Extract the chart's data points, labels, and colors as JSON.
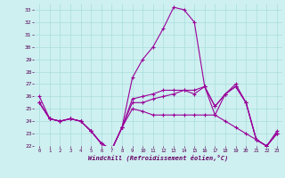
{
  "x": [
    0,
    1,
    2,
    3,
    4,
    5,
    6,
    7,
    8,
    9,
    10,
    11,
    12,
    13,
    14,
    15,
    16,
    17,
    18,
    19,
    20,
    21,
    22,
    23
  ],
  "line1": [
    26,
    24.2,
    24,
    24.2,
    24,
    23.2,
    22.2,
    21.7,
    23.5,
    25.5,
    25.5,
    25.8,
    26.0,
    26.2,
    26.5,
    26.2,
    26.8,
    25.2,
    26.2,
    26.8,
    25.5,
    22.5,
    22.0,
    23.0
  ],
  "line2": [
    25.5,
    24.2,
    24,
    24.2,
    24,
    23.2,
    22.2,
    21.7,
    23.5,
    27.5,
    29.0,
    30.0,
    31.5,
    33.2,
    33.0,
    32.0,
    26.8,
    24.5,
    26.2,
    27.0,
    25.5,
    22.5,
    22.0,
    23.2
  ],
  "line3": [
    25.5,
    24.2,
    24,
    24.2,
    24,
    23.2,
    22.2,
    21.7,
    23.5,
    25.8,
    26.0,
    26.2,
    26.5,
    26.5,
    26.5,
    26.5,
    26.8,
    25.2,
    26.2,
    26.8,
    25.5,
    22.5,
    22.0,
    23.0
  ],
  "line4": [
    25.5,
    24.2,
    24,
    24.2,
    24,
    23.2,
    22.2,
    21.7,
    23.5,
    25.0,
    24.8,
    24.5,
    24.5,
    24.5,
    24.5,
    24.5,
    24.5,
    24.5,
    24.0,
    23.5,
    23.0,
    22.5,
    22.0,
    23.0
  ],
  "bg_color": "#cef0f0",
  "line_color": "#990099",
  "grid_color": "#aadddd",
  "xlabel": "Windchill (Refroidissement éolien,°C)",
  "ylim": [
    22,
    33
  ],
  "xlim": [
    -0.5,
    23.5
  ],
  "yticks": [
    22,
    23,
    24,
    25,
    26,
    27,
    28,
    29,
    30,
    31,
    32,
    33
  ],
  "xticks": [
    0,
    1,
    2,
    3,
    4,
    5,
    6,
    7,
    8,
    9,
    10,
    11,
    12,
    13,
    14,
    15,
    16,
    17,
    18,
    19,
    20,
    21,
    22,
    23
  ]
}
